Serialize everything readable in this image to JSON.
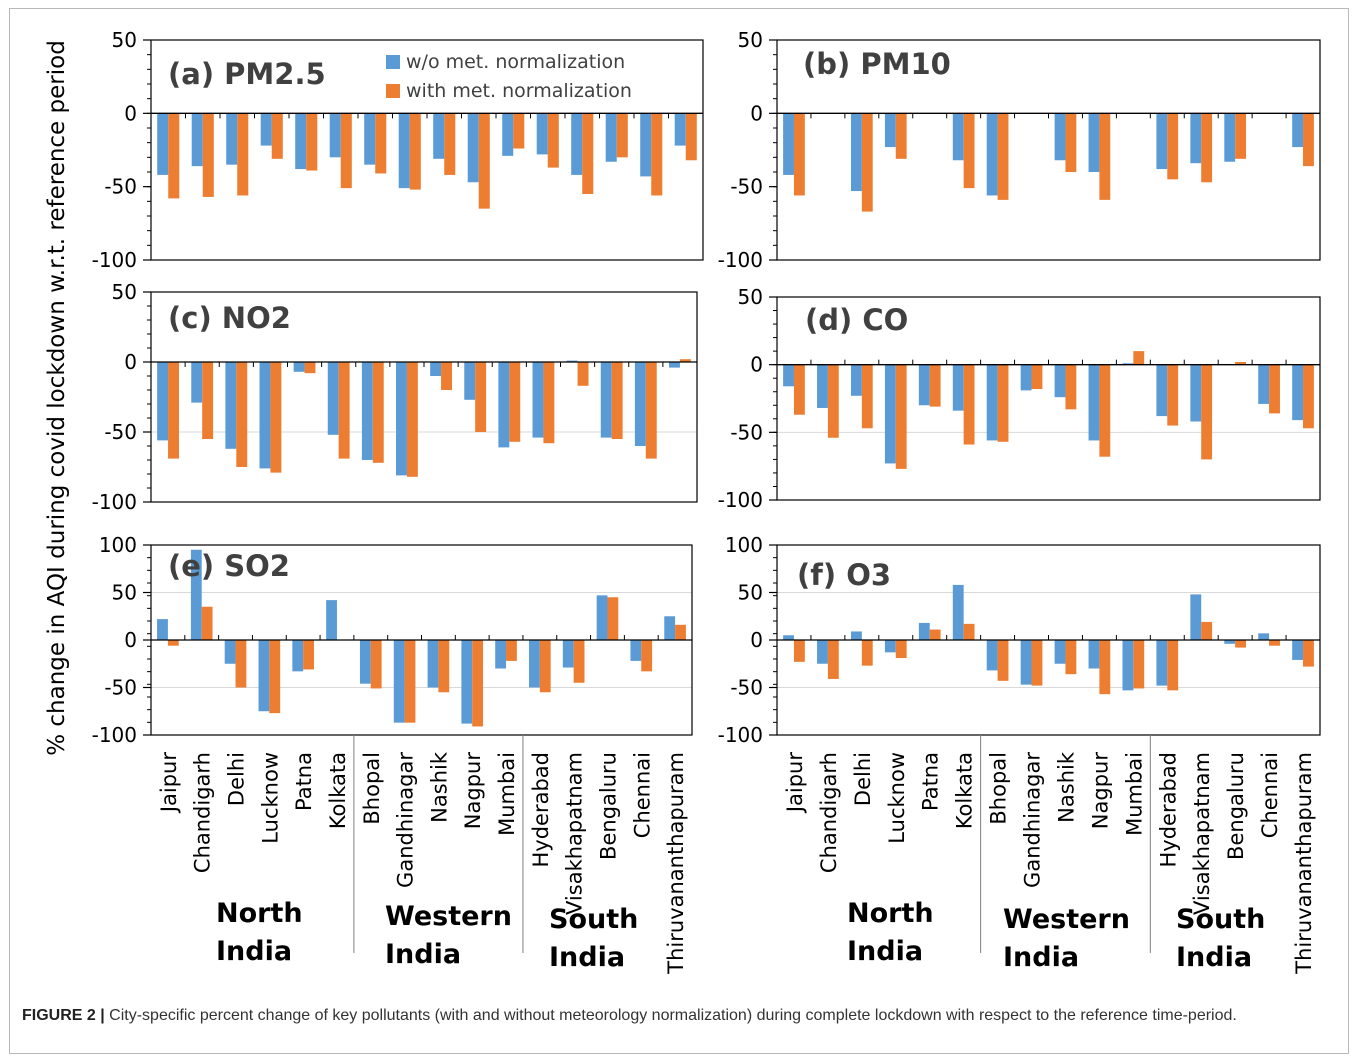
{
  "figure": {
    "ylabel": "% change in AQI during covid lockdown w.r.t. reference period",
    "legend": [
      "w/o met. normalization",
      "with met. normalization"
    ],
    "colors": {
      "without": "#5b9bd5",
      "with": "#ed7d31",
      "grid": "#d9d9d9",
      "axis": "#000000"
    },
    "regions": [
      {
        "line1": "North",
        "line2": "India"
      },
      {
        "line1": "Western",
        "line2": "India"
      },
      {
        "line1": "South",
        "line2": "India"
      }
    ]
  },
  "caption": {
    "label": "FIGURE 2 |",
    "text": "City-specific percent change of key pollutants (with and without meteorology normalization) during complete lockdown with respect to the reference time-period."
  },
  "chart_data": [
    {
      "type": "bar",
      "title": "(a) PM2.5",
      "ylim": [
        -100,
        50
      ],
      "yticks": [
        50,
        0,
        -50,
        -100
      ],
      "grid": false,
      "categories": [
        "Jaipur",
        "Chandigarh",
        "Delhi",
        "Lucknow",
        "Patna",
        "Kolkata",
        "Bhopal",
        "Gandhinagar",
        "Nashik",
        "Nagpur",
        "Mumbai",
        "Hyderabad",
        "Visakhapatnam",
        "Bengaluru",
        "Chennai",
        "Thiruvananthapuram"
      ],
      "series": [
        {
          "name": "w/o met. normalization",
          "values": [
            -42,
            -36,
            -35,
            -22,
            -38,
            -30,
            -35,
            -51,
            -31,
            -47,
            -29,
            -28,
            -42,
            -33,
            -43,
            -22
          ]
        },
        {
          "name": "with met. normalization",
          "values": [
            -58,
            -57,
            -56,
            -31,
            -39,
            -51,
            -41,
            -52,
            -42,
            -65,
            -24,
            -37,
            -55,
            -30,
            -56,
            -32
          ]
        }
      ]
    },
    {
      "type": "bar",
      "title": "(b) PM10",
      "ylim": [
        -100,
        50
      ],
      "yticks": [
        50,
        0,
        -50,
        -100
      ],
      "grid": false,
      "categories": [
        "Jaipur",
        "Chandigarh",
        "Delhi",
        "Lucknow",
        "Patna",
        "Kolkata",
        "Bhopal",
        "Gandhinagar",
        "Nashik",
        "Nagpur",
        "Mumbai",
        "Hyderabad",
        "Visakhapatnam",
        "Bengaluru",
        "Chennai",
        "Thiruvananthapuram"
      ],
      "series": [
        {
          "name": "w/o met. normalization",
          "values": [
            -42,
            null,
            -53,
            -23,
            null,
            -32,
            -56,
            null,
            -32,
            -40,
            null,
            -38,
            -34,
            -33,
            null,
            -23
          ]
        },
        {
          "name": "with met. normalization",
          "values": [
            -56,
            null,
            -67,
            -31,
            null,
            -51,
            -59,
            null,
            -40,
            -59,
            null,
            -45,
            -47,
            -31,
            null,
            -36
          ]
        }
      ]
    },
    {
      "type": "bar",
      "title": "(c) NO2",
      "ylim": [
        -100,
        50
      ],
      "yticks": [
        50,
        0,
        -50,
        -100
      ],
      "grid": true,
      "categories": [
        "Jaipur",
        "Chandigarh",
        "Delhi",
        "Lucknow",
        "Patna",
        "Kolkata",
        "Bhopal",
        "Gandhinagar",
        "Nashik",
        "Nagpur",
        "Mumbai",
        "Hyderabad",
        "Visakhapatnam",
        "Bengaluru",
        "Chennai",
        "Thiruvananthapuram"
      ],
      "series": [
        {
          "name": "w/o met. normalization",
          "values": [
            -56,
            -29,
            -62,
            -76,
            -7,
            -52,
            -70,
            -81,
            -10,
            -27,
            -61,
            -54,
            1,
            -54,
            -60,
            -4
          ]
        },
        {
          "name": "with met. normalization",
          "values": [
            -69,
            -55,
            -75,
            -79,
            -8,
            -69,
            -72,
            -82,
            -20,
            -50,
            -57,
            -58,
            -17,
            -55,
            -69,
            2
          ]
        }
      ]
    },
    {
      "type": "bar",
      "title": "(d) CO",
      "ylim": [
        -100,
        50
      ],
      "yticks": [
        50,
        0,
        -50,
        -100
      ],
      "grid": true,
      "categories": [
        "Jaipur",
        "Chandigarh",
        "Delhi",
        "Lucknow",
        "Patna",
        "Kolkata",
        "Bhopal",
        "Gandhinagar",
        "Nashik",
        "Nagpur",
        "Mumbai",
        "Hyderabad",
        "Visakhapatnam",
        "Bengaluru",
        "Chennai",
        "Thiruvananthapuram"
      ],
      "series": [
        {
          "name": "w/o met. normalization",
          "values": [
            -16,
            -32,
            -23,
            -73,
            -30,
            -34,
            -56,
            -19,
            -24,
            -56,
            1,
            -38,
            -42,
            null,
            -29,
            -41
          ]
        },
        {
          "name": "with met. normalization",
          "values": [
            -37,
            -54,
            -47,
            -77,
            -31,
            -59,
            -57,
            -18,
            -33,
            -68,
            10,
            -45,
            -70,
            2,
            -36,
            -47
          ]
        }
      ]
    },
    {
      "type": "bar",
      "title": "(e) SO2",
      "ylim": [
        -100,
        100
      ],
      "yticks": [
        100,
        50,
        0,
        -50,
        -100
      ],
      "grid": true,
      "categories": [
        "Jaipur",
        "Chandigarh",
        "Delhi",
        "Lucknow",
        "Patna",
        "Kolkata",
        "Bhopal",
        "Gandhinagar",
        "Nashik",
        "Nagpur",
        "Mumbai",
        "Hyderabad",
        "Visakhapatnam",
        "Bengaluru",
        "Chennai",
        "Thiruvananthapuram"
      ],
      "series": [
        {
          "name": "w/o met. normalization",
          "values": [
            22,
            95,
            -25,
            -75,
            -33,
            42,
            -46,
            -87,
            -50,
            -88,
            -30,
            -50,
            -29,
            47,
            -22,
            25
          ]
        },
        {
          "name": "with met. normalization",
          "values": [
            -6,
            35,
            -50,
            -77,
            -31,
            null,
            -51,
            -87,
            -55,
            -91,
            -22,
            -55,
            -45,
            45,
            -33,
            16
          ]
        }
      ]
    },
    {
      "type": "bar",
      "title": "(f) O3",
      "ylim": [
        -100,
        100
      ],
      "yticks": [
        100,
        50,
        0,
        -50,
        -100
      ],
      "grid": true,
      "categories": [
        "Jaipur",
        "Chandigarh",
        "Delhi",
        "Lucknow",
        "Patna",
        "Kolkata",
        "Bhopal",
        "Gandhinagar",
        "Nashik",
        "Nagpur",
        "Mumbai",
        "Hyderabad",
        "Visakhapatnam",
        "Bengaluru",
        "Chennai",
        "Thiruvananthapuram"
      ],
      "series": [
        {
          "name": "w/o met. normalization",
          "values": [
            5,
            -25,
            9,
            -13,
            18,
            58,
            -32,
            -47,
            -25,
            -30,
            -53,
            -48,
            48,
            -4,
            7,
            -21
          ]
        },
        {
          "name": "with met. normalization",
          "values": [
            -23,
            -41,
            -27,
            -19,
            11,
            17,
            -43,
            -48,
            -36,
            -57,
            -51,
            -53,
            19,
            -8,
            -6,
            -28
          ]
        }
      ]
    }
  ]
}
